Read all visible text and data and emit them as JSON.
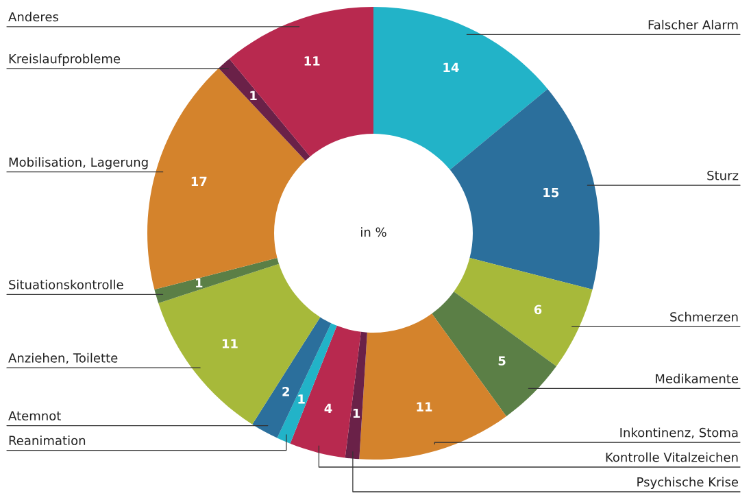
{
  "chart_data": {
    "type": "donut",
    "categories": [
      "Falscher Alarm",
      "Sturz",
      "Schmerzen",
      "Medikamente",
      "Inkontinenz, Stoma",
      "Psychische Krise",
      "Kontrolle Vitalzeichen",
      "Reanimation",
      "Atemnot",
      "Anziehen, Toilette",
      "Situationskontrolle",
      "Mobilisation, Lagerung",
      "Kreislaufprobleme",
      "Anderes"
    ],
    "values": [
      14,
      15,
      6,
      5,
      11,
      1,
      4,
      1,
      2,
      11,
      1,
      17,
      1,
      11
    ],
    "colors": [
      "#22b3c8",
      "#2b6f9c",
      "#a7b93a",
      "#5b7f46",
      "#d4832c",
      "#6a2148",
      "#b8294f",
      "#22b3c8",
      "#2b6f9c",
      "#a7b93a",
      "#5b7f46",
      "#d4832c",
      "#6a2148",
      "#b8294f"
    ],
    "data_labels": true,
    "annotations": [
      "in %"
    ],
    "legend": false
  }
}
